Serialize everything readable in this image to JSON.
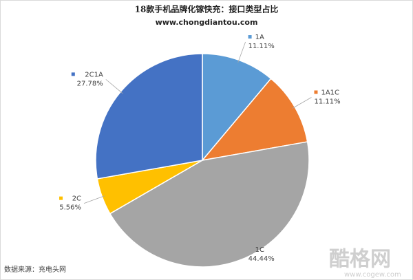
{
  "chart_data": {
    "type": "pie",
    "title": "18款手机品牌化镓快充：接口类型占比",
    "subtitle": "www.chongdiantou.com",
    "source": "数据来源：充电头网",
    "watermark": "酷格网",
    "watermark_url": "www.cogew.com",
    "categories": [
      "1A",
      "1A1C",
      "1C",
      "2C",
      "2C1A"
    ],
    "values": [
      11.11,
      11.11,
      44.44,
      5.56,
      27.78
    ],
    "value_labels": [
      "11.11%",
      "11.11%",
      "44.44%",
      "5.56%",
      "27.78%"
    ],
    "colors": [
      "#5b9bd5",
      "#ed7d31",
      "#a5a5a5",
      "#ffc000",
      "#4472c4"
    ]
  }
}
